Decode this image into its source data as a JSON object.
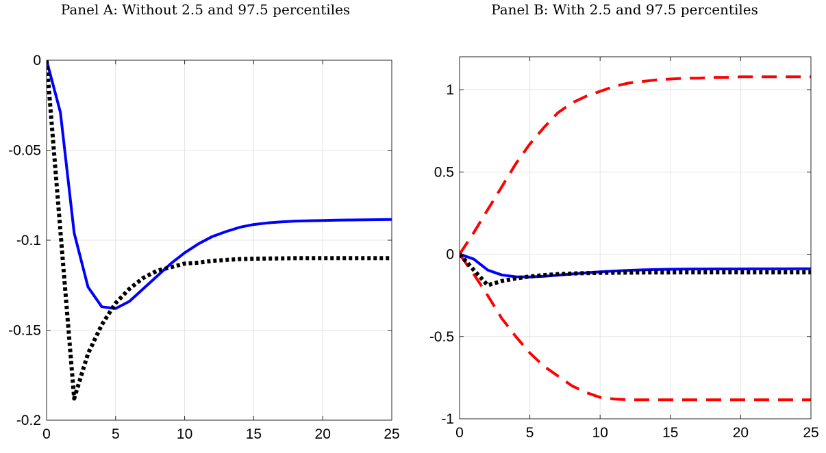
{
  "panels": [
    {
      "title": "Panel A: Without 2.5 and 97.5 percentiles"
    },
    {
      "title": "Panel B: With 2.5 and 97.5 percentiles"
    }
  ],
  "chart_data": [
    {
      "type": "line",
      "title": "Panel A: Without 2.5 and 97.5 percentiles",
      "xlabel": "",
      "ylabel": "",
      "xlim": [
        0,
        25
      ],
      "ylim": [
        -0.2,
        0
      ],
      "xticks": [
        0,
        5,
        10,
        15,
        20,
        25
      ],
      "xtick_labels": [
        "0",
        "5",
        "10",
        "15",
        "20",
        "25"
      ],
      "yticks": [
        0,
        -0.05,
        -0.1,
        -0.15,
        -0.2
      ],
      "ytick_labels": [
        "0",
        "-0.05",
        "-0.1",
        "-0.15",
        "-0.2"
      ],
      "grid": true,
      "x": [
        0,
        1,
        2,
        3,
        4,
        5,
        6,
        7,
        8,
        9,
        10,
        11,
        12,
        13,
        14,
        15,
        16,
        17,
        18,
        19,
        20,
        21,
        22,
        23,
        24,
        25
      ],
      "series": [
        {
          "color": "#0000ff",
          "style": "solid",
          "values": [
            0,
            -0.029,
            -0.096,
            -0.126,
            -0.137,
            -0.138,
            -0.134,
            -0.127,
            -0.12,
            -0.113,
            -0.107,
            -0.102,
            -0.098,
            -0.0952,
            -0.0928,
            -0.0913,
            -0.0904,
            -0.0898,
            -0.0894,
            -0.0892,
            -0.0891,
            -0.0889,
            -0.0888,
            -0.0887,
            -0.0886,
            -0.0885
          ]
        },
        {
          "color": "#000000",
          "style": "dotted",
          "values": [
            0,
            -0.095,
            -0.188,
            -0.163,
            -0.147,
            -0.135,
            -0.127,
            -0.121,
            -0.117,
            -0.115,
            -0.113,
            -0.1125,
            -0.1115,
            -0.111,
            -0.1105,
            -0.1103,
            -0.1102,
            -0.1101,
            -0.11,
            -0.11,
            -0.11,
            -0.11,
            -0.11,
            -0.11,
            -0.11,
            -0.11
          ]
        }
      ]
    },
    {
      "type": "line",
      "title": "Panel B: With 2.5 and 97.5 percentiles",
      "xlabel": "",
      "ylabel": "",
      "xlim": [
        0,
        25
      ],
      "ylim": [
        -1,
        1.2
      ],
      "xticks": [
        0,
        5,
        10,
        15,
        20,
        25
      ],
      "xtick_labels": [
        "0",
        "5",
        "10",
        "15",
        "20",
        "25"
      ],
      "yticks": [
        1,
        0.5,
        0,
        -0.5,
        -1
      ],
      "ytick_labels": [
        "1",
        "0.5",
        "0",
        "-0.5",
        "-1"
      ],
      "grid": true,
      "x": [
        0,
        1,
        2,
        3,
        4,
        5,
        6,
        7,
        8,
        9,
        10,
        11,
        12,
        13,
        14,
        15,
        16,
        17,
        18,
        19,
        20,
        21,
        22,
        23,
        24,
        25
      ],
      "series": [
        {
          "color": "#ff0000",
          "style": "dashed",
          "values": [
            0,
            0.13,
            0.27,
            0.41,
            0.55,
            0.67,
            0.77,
            0.86,
            0.92,
            0.96,
            0.99,
            1.02,
            1.04,
            1.05,
            1.06,
            1.065,
            1.07,
            1.07,
            1.075,
            1.075,
            1.078,
            1.078,
            1.078,
            1.078,
            1.078,
            1.078
          ]
        },
        {
          "color": "#ff0000",
          "style": "dashed",
          "values": [
            0,
            -0.12,
            -0.25,
            -0.39,
            -0.5,
            -0.6,
            -0.68,
            -0.74,
            -0.8,
            -0.84,
            -0.87,
            -0.88,
            -0.885,
            -0.885,
            -0.885,
            -0.885,
            -0.885,
            -0.885,
            -0.885,
            -0.885,
            -0.885,
            -0.885,
            -0.885,
            -0.885,
            -0.885,
            -0.885
          ]
        },
        {
          "color": "#0000ff",
          "style": "solid",
          "values": [
            0,
            -0.029,
            -0.096,
            -0.126,
            -0.137,
            -0.138,
            -0.134,
            -0.127,
            -0.12,
            -0.113,
            -0.107,
            -0.102,
            -0.098,
            -0.0952,
            -0.0928,
            -0.0913,
            -0.0904,
            -0.0898,
            -0.0894,
            -0.0892,
            -0.0891,
            -0.0889,
            -0.0888,
            -0.0887,
            -0.0886,
            -0.0885
          ]
        },
        {
          "color": "#000000",
          "style": "dotted",
          "values": [
            0,
            -0.095,
            -0.188,
            -0.163,
            -0.147,
            -0.135,
            -0.127,
            -0.121,
            -0.117,
            -0.115,
            -0.113,
            -0.1125,
            -0.1115,
            -0.111,
            -0.1105,
            -0.1103,
            -0.1102,
            -0.1101,
            -0.11,
            -0.11,
            -0.11,
            -0.11,
            -0.11,
            -0.11,
            -0.11,
            -0.11
          ]
        }
      ]
    }
  ]
}
